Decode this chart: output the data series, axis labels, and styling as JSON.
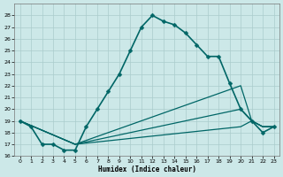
{
  "xlabel": "Humidex (Indice chaleur)",
  "background_color": "#cce8e8",
  "grid_color": "#aacccc",
  "line_color": "#006666",
  "xlim": [
    -0.5,
    23.5
  ],
  "ylim": [
    16,
    29
  ],
  "yticks": [
    16,
    17,
    18,
    19,
    20,
    21,
    22,
    23,
    24,
    25,
    26,
    27,
    28
  ],
  "xticks": [
    0,
    1,
    2,
    3,
    4,
    5,
    6,
    7,
    8,
    9,
    10,
    11,
    12,
    13,
    14,
    15,
    16,
    17,
    18,
    19,
    20,
    21,
    22,
    23
  ],
  "series": [
    {
      "x": [
        0,
        1,
        2,
        3,
        4,
        5,
        6,
        7,
        8,
        9,
        10,
        11,
        12,
        13,
        14,
        15,
        16,
        17,
        18,
        19,
        20,
        21,
        22,
        23
      ],
      "y": [
        19.0,
        18.5,
        17.0,
        17.0,
        16.5,
        16.5,
        18.5,
        20.0,
        21.5,
        23.0,
        25.0,
        27.0,
        28.0,
        27.5,
        27.2,
        26.5,
        25.5,
        24.5,
        24.5,
        22.2,
        20.0,
        19.0,
        18.0,
        18.5
      ],
      "marker": "D",
      "markersize": 2.5,
      "linewidth": 1.2
    },
    {
      "x": [
        0,
        5,
        20,
        21,
        22,
        23
      ],
      "y": [
        19.0,
        17.0,
        22.0,
        19.0,
        18.5,
        18.5
      ],
      "marker": null,
      "markersize": 0,
      "linewidth": 0.9
    },
    {
      "x": [
        0,
        5,
        20,
        21,
        22,
        23
      ],
      "y": [
        19.0,
        17.0,
        20.0,
        19.0,
        18.5,
        18.5
      ],
      "marker": null,
      "markersize": 0,
      "linewidth": 0.9
    },
    {
      "x": [
        0,
        5,
        20,
        21,
        22,
        23
      ],
      "y": [
        19.0,
        17.0,
        18.5,
        19.0,
        18.5,
        18.5
      ],
      "marker": null,
      "markersize": 0,
      "linewidth": 0.9
    }
  ]
}
